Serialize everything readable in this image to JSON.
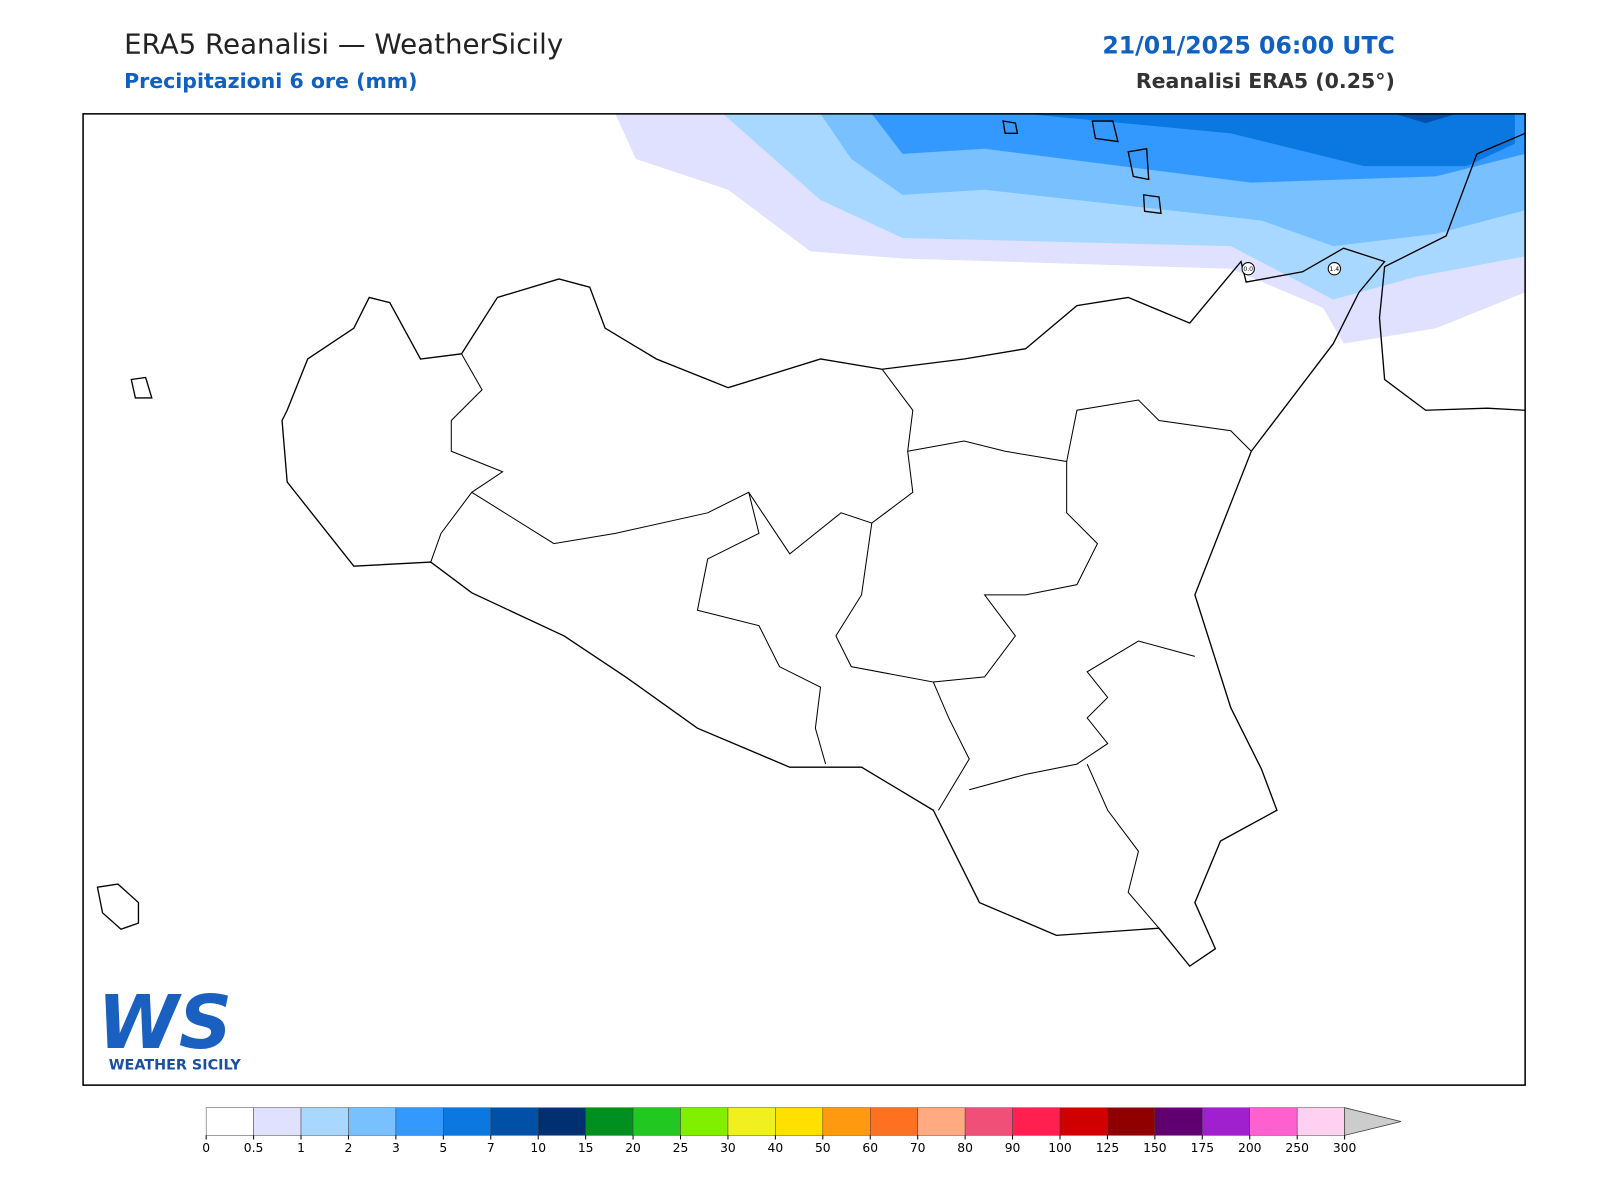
{
  "header": {
    "title": "ERA5 Reanalisi — WeatherSicily",
    "subtitle": "Precipitazioni 6 ore (mm)",
    "date": "21/01/2025 06:00 UTC",
    "source": "Reanalisi ERA5 (0.25°)"
  },
  "stations": [
    "0.0",
    "1.4"
  ],
  "logo": {
    "mark": "WS",
    "text": "WEATHER SICILY"
  },
  "colorbar": {
    "ticks": [
      0,
      0.5,
      1,
      2,
      3,
      5,
      7,
      10,
      15,
      20,
      25,
      30,
      40,
      50,
      60,
      70,
      80,
      90,
      100,
      125,
      150,
      175,
      200,
      250,
      300
    ],
    "colors": [
      "#ffffff",
      "#e0e0ff",
      "#a8d8ff",
      "#78c0ff",
      "#3399ff",
      "#0a78e0",
      "#0050a8",
      "#003070",
      "#009020",
      "#20c820",
      "#80f000",
      "#f0f020",
      "#ffe000",
      "#ff9a10",
      "#ff7020",
      "#ffaa80",
      "#f05078",
      "#ff2050",
      "#d00000",
      "#900000",
      "#600070",
      "#a020d0",
      "#ff60d0",
      "#ffd0f0"
    ],
    "extend_color": "#cccccc"
  }
}
